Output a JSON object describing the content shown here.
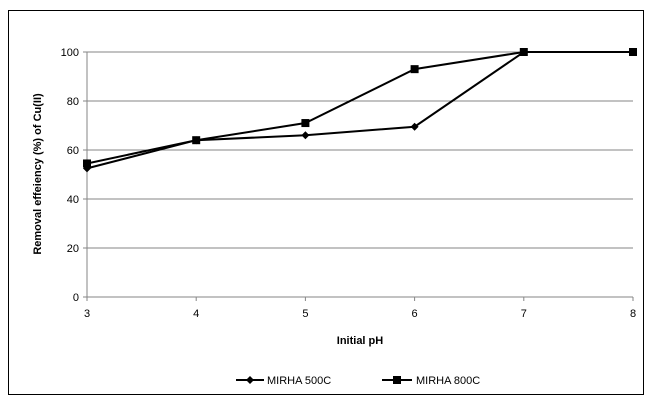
{
  "chart_data": {
    "type": "line",
    "title": "",
    "xlabel": "Initial pH",
    "ylabel": "Removal effeiency  (%) of Cu(II)",
    "x": [
      3,
      4,
      5,
      6,
      7,
      8
    ],
    "xlim": [
      3,
      8
    ],
    "ylim": [
      0,
      100
    ],
    "y_ticks": [
      0,
      20,
      40,
      60,
      80,
      100
    ],
    "x_ticks": [
      3,
      4,
      5,
      6,
      7,
      8
    ],
    "grid": "horizontal",
    "legend_position": "bottom",
    "series": [
      {
        "name": "MIRHA 500C",
        "marker": "diamond",
        "color": "#000000",
        "values": [
          52.5,
          64,
          66,
          69.5,
          100,
          100
        ]
      },
      {
        "name": "MIRHA 800C",
        "marker": "square",
        "color": "#000000",
        "values": [
          54.5,
          64,
          71,
          93,
          100,
          100
        ]
      }
    ]
  }
}
